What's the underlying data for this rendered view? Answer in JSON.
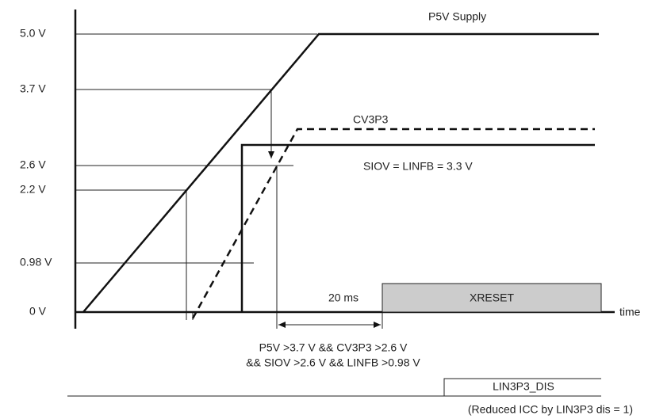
{
  "levels": [
    "5.0 V",
    "3.7 V",
    "2.6 V",
    "2.2 V",
    "0.98 V",
    "0 V"
  ],
  "signals": {
    "p5v": "P5V Supply",
    "cv3p3": "CV3P3",
    "siov": "SIOV = LINFB = 3.3 V",
    "xreset": "XRESET",
    "lin3p3": "LIN3P3_DIS"
  },
  "delay": "20 ms",
  "axis": "time",
  "condition": [
    "P5V >3.7 V && CV3P3 >2.6 V",
    "&& SIOV >2.6 V && LINFB >0.98 V"
  ],
  "note": "(Reduced ICC by LIN3P3  dis = 1)"
}
